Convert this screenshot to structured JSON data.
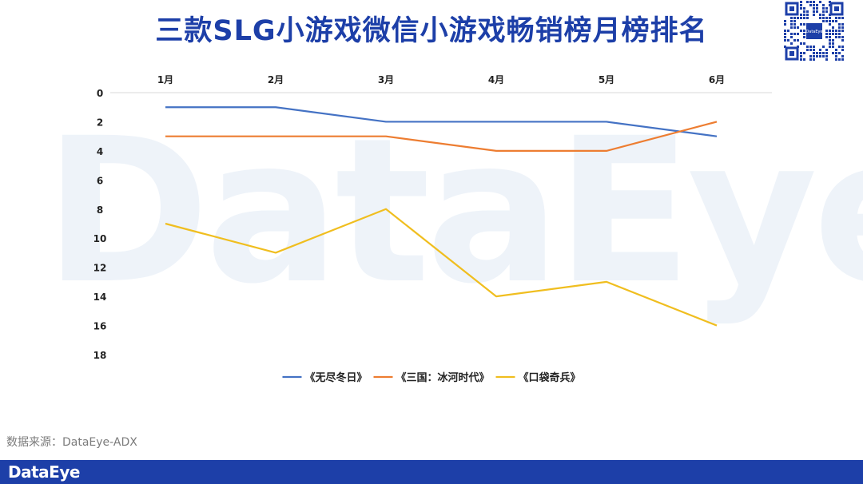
{
  "header": {
    "title": "三款SLG小游戏微信小游戏畅销榜月榜排名",
    "qr_label": "DataEye"
  },
  "watermark": "DataEye",
  "chart_data": {
    "type": "line",
    "categories": [
      "1月",
      "2月",
      "3月",
      "4月",
      "5月",
      "6月"
    ],
    "ylim": [
      0,
      18
    ],
    "yticks": [
      0,
      2,
      4,
      6,
      8,
      10,
      12,
      14,
      16,
      18
    ],
    "y_inverted": true,
    "x_axis_position": "top",
    "grid": false,
    "legend_position": "bottom",
    "series": [
      {
        "name": "《无尽冬日》",
        "color": "#4472c4",
        "values": [
          1,
          1,
          2,
          2,
          2,
          3
        ]
      },
      {
        "name": "《三国：冰河时代》",
        "color": "#ed7d31",
        "values": [
          3,
          3,
          3,
          4,
          4,
          2
        ]
      },
      {
        "name": "《口袋奇兵》",
        "color": "#f0be1f",
        "values": [
          9,
          11,
          8,
          14,
          13,
          16
        ]
      }
    ]
  },
  "source": "数据来源：DataEye-ADX",
  "footer": {
    "logo": "DataEye"
  },
  "colors": {
    "brand": "#1d3fa8"
  }
}
